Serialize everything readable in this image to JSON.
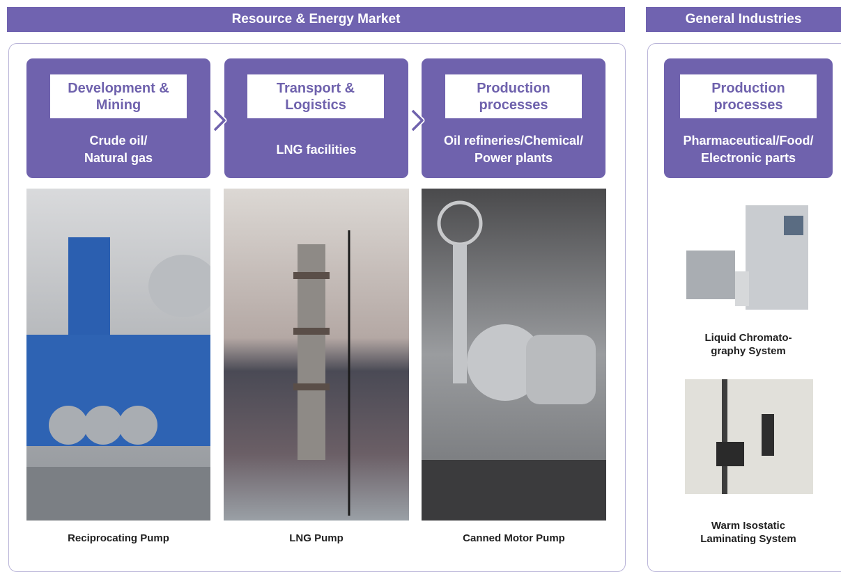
{
  "sections": [
    {
      "title": "Resource & Energy Market",
      "stages": [
        {
          "heading": "Development &\nMining",
          "label": "Crude oil/\nNatural gas",
          "product": "Reciprocating Pump"
        },
        {
          "heading": "Transport &\nLogistics",
          "label": "LNG facilities",
          "product": "LNG Pump"
        },
        {
          "heading": "Production\nprocesses",
          "label": "Oil refineries/Chemical/\nPower plants",
          "product": "Canned Motor Pump"
        }
      ]
    },
    {
      "title": "General Industries",
      "stages": [
        {
          "heading": "Production\nprocesses",
          "label": "Pharmaceutical/Food/\nElectronic parts"
        }
      ],
      "products": [
        "Liquid Chromato-\ngraphy System",
        "Warm Isostatic\nLaminating System"
      ]
    }
  ]
}
